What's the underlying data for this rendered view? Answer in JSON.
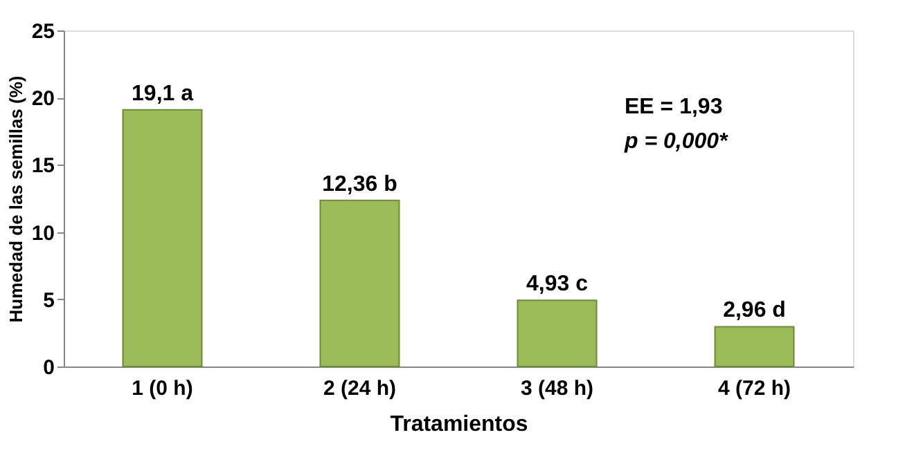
{
  "chart_data": {
    "type": "bar",
    "xlabel": "Tratamientos",
    "ylabel": "Humedad de las semillas (%)",
    "categories": [
      "1 (0 h)",
      "2 (24 h)",
      "3 (48 h)",
      "4 (72 h)"
    ],
    "values": [
      19.1,
      12.36,
      4.93,
      2.96
    ],
    "value_labels": [
      "19,1 a",
      "12,36 b",
      "4,93 c",
      "2,96 d"
    ],
    "color": "#9bbb59",
    "ylim": [
      0,
      25
    ],
    "yticks": [
      0,
      5,
      10,
      15,
      20,
      25
    ],
    "grid": false,
    "annotations": [
      "EE = 1,93",
      "p = 0,000*"
    ]
  }
}
